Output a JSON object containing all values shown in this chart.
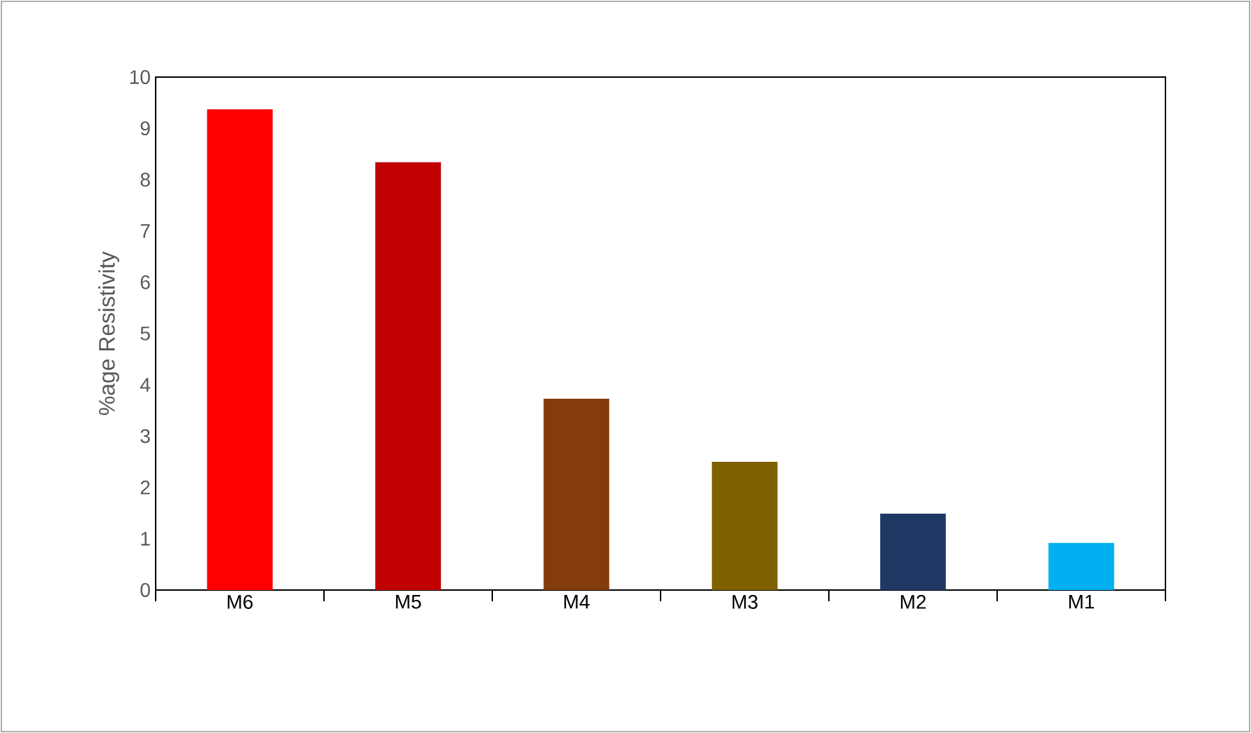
{
  "chart_data": {
    "type": "bar",
    "ylabel": "%age Resistivity",
    "categories": [
      "M6",
      "M5",
      "M4",
      "M3",
      "M2",
      "M1"
    ],
    "values": [
      9.37,
      8.34,
      3.73,
      2.5,
      1.49,
      0.92
    ],
    "colors": [
      "#ff0000",
      "#c00000",
      "#843c0c",
      "#7f6000",
      "#203864",
      "#00b0f0"
    ],
    "ylim": [
      0,
      10
    ],
    "yticks": [
      0,
      1,
      2,
      3,
      4,
      5,
      6,
      7,
      8,
      9,
      10
    ],
    "grid": false
  }
}
